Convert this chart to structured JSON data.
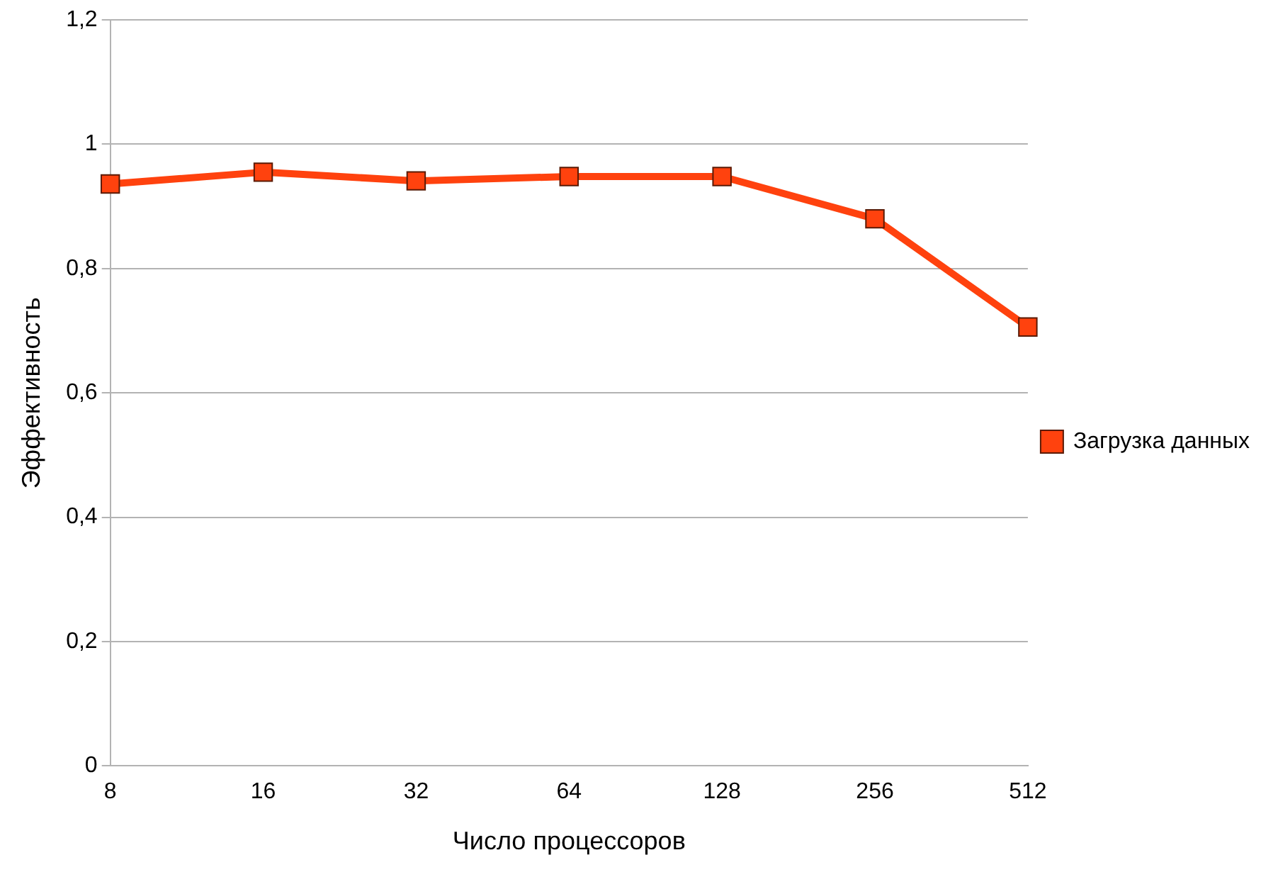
{
  "chart_data": {
    "type": "line",
    "xlabel": "Число процессоров",
    "ylabel": "Эффективность",
    "categories": [
      "8",
      "16",
      "32",
      "64",
      "128",
      "256",
      "512"
    ],
    "series": [
      {
        "name": "Загрузка данных",
        "color": "#ff420e",
        "values": [
          0.936,
          0.955,
          0.941,
          0.948,
          0.948,
          0.88,
          0.706
        ]
      }
    ],
    "ylim": [
      0,
      1.2
    ],
    "yticks": [
      0,
      {
        "value": 0.2,
        "label": "0,2"
      },
      {
        "value": 0.4,
        "label": "0,4"
      },
      {
        "value": 0.6,
        "label": "0,6"
      },
      {
        "value": 0.8,
        "label": "0,8"
      },
      1,
      {
        "value": 1.2,
        "label": "1,2"
      }
    ],
    "grid": "y",
    "legend": "right",
    "marker": "square",
    "line_style": "solid"
  }
}
